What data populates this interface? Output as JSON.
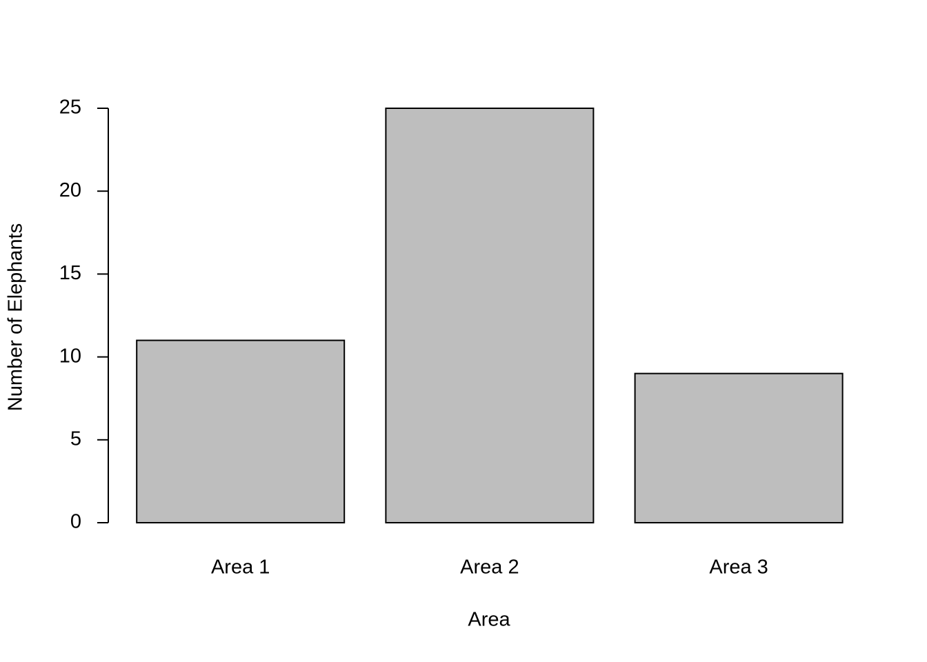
{
  "chart_data": {
    "type": "bar",
    "x_label": "Area",
    "y_label": "Number of Elephants",
    "categories": [
      "Area 1",
      "Area 2",
      "Area 3"
    ],
    "values": [
      11,
      25,
      9
    ],
    "color": "#bebebe",
    "ylim": [
      0,
      25
    ],
    "yticks": [
      0,
      5,
      10,
      15,
      20,
      25
    ]
  }
}
